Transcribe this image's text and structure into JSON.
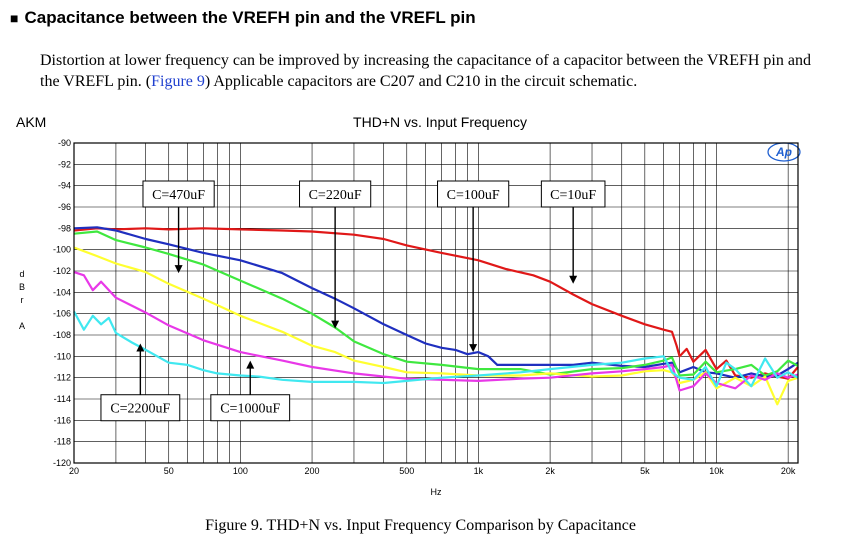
{
  "heading": {
    "bullet": "■",
    "text": "Capacitance between the VREFH pin and the VREFL pin"
  },
  "body": {
    "text_before": "Distortion at lower frequency can be improved by increasing the capacitance of a capacitor between the VREFH pin and the VREFL pin. (",
    "link": "Figure 9",
    "text_after": ")  Applicable capacitors are C207 and C210 in the circuit schematic."
  },
  "caption": "Figure 9. THD+N vs. Input Frequency Comparison by Capacitance",
  "chart_data": {
    "type": "line",
    "title": "THD+N vs. Input Frequency",
    "brand": "AKM",
    "logo_text": "Ap",
    "xlabel": "Hz",
    "ylabel": [
      "d",
      "B",
      "r",
      "",
      "A"
    ],
    "x_scale": "log",
    "xlim": [
      20,
      22000
    ],
    "ylim": [
      -120,
      -90
    ],
    "grid": true,
    "x_ticks": [
      {
        "v": 20,
        "label": "20"
      },
      {
        "v": 50,
        "label": "50"
      },
      {
        "v": 100,
        "label": "100"
      },
      {
        "v": 200,
        "label": "200"
      },
      {
        "v": 500,
        "label": "500"
      },
      {
        "v": 1000,
        "label": "1k"
      },
      {
        "v": 2000,
        "label": "2k"
      },
      {
        "v": 5000,
        "label": "5k"
      },
      {
        "v": 10000,
        "label": "10k"
      },
      {
        "v": 20000,
        "label": "20k"
      }
    ],
    "y_ticks": [
      {
        "v": -90,
        "label": "-90"
      },
      {
        "v": -92,
        "label": "-92"
      },
      {
        "v": -94,
        "label": "-94"
      },
      {
        "v": -96,
        "label": "-96"
      },
      {
        "v": -98,
        "label": "-98"
      },
      {
        "v": -100,
        "label": "-100"
      },
      {
        "v": -102,
        "label": "-102"
      },
      {
        "v": -104,
        "label": "-104"
      },
      {
        "v": -106,
        "label": "-106"
      },
      {
        "v": -108,
        "label": "-108"
      },
      {
        "v": -110,
        "label": "-110"
      },
      {
        "v": -112,
        "label": "-112"
      },
      {
        "v": -114,
        "label": "-114"
      },
      {
        "v": -116,
        "label": "-116"
      },
      {
        "v": -118,
        "label": "-118"
      },
      {
        "v": -120,
        "label": "-120"
      }
    ],
    "series": [
      {
        "name": "C=10uF",
        "color": "#e01818",
        "x": [
          20,
          25,
          30,
          40,
          50,
          70,
          100,
          150,
          200,
          300,
          400,
          500,
          700,
          1000,
          1300,
          1700,
          2000,
          2500,
          3000,
          4000,
          5000,
          6000,
          6500,
          6800,
          7000,
          7500,
          8000,
          9000,
          10000,
          11000,
          12000,
          14000,
          16000,
          18000,
          20000,
          22000
        ],
        "y": [
          -98.2,
          -98.0,
          -98.1,
          -98.0,
          -98.1,
          -98.0,
          -98.1,
          -98.2,
          -98.3,
          -98.6,
          -99.0,
          -99.6,
          -100.3,
          -101.0,
          -101.8,
          -102.4,
          -103.0,
          -104.2,
          -105.1,
          -106.2,
          -107.0,
          -107.5,
          -107.7,
          -109.0,
          -110.0,
          -109.3,
          -110.5,
          -109.4,
          -111.2,
          -110.4,
          -111.8,
          -112.0,
          -111.6,
          -111.9,
          -112.1,
          -111.0
        ]
      },
      {
        "name": "C=100uF",
        "color": "#1f2fbf",
        "x": [
          20,
          25,
          30,
          40,
          50,
          70,
          100,
          150,
          200,
          250,
          300,
          400,
          500,
          600,
          700,
          800,
          900,
          1000,
          1100,
          1200,
          1500,
          2000,
          2500,
          3000,
          4000,
          5000,
          6000,
          6500,
          7000,
          8000,
          9000,
          10000,
          12000,
          14000,
          16000,
          18000,
          20000,
          22000
        ],
        "y": [
          -98.0,
          -97.9,
          -98.2,
          -99.0,
          -99.5,
          -100.3,
          -101.0,
          -102.2,
          -103.6,
          -104.6,
          -105.5,
          -107.0,
          -108.0,
          -108.8,
          -109.2,
          -109.4,
          -109.8,
          -109.6,
          -110.0,
          -110.8,
          -110.8,
          -110.8,
          -110.8,
          -110.6,
          -110.9,
          -111.0,
          -110.7,
          -110.6,
          -111.5,
          -111.0,
          -111.5,
          -111.6,
          -112.0,
          -111.6,
          -111.9,
          -111.8,
          -111.2,
          -110.6
        ]
      },
      {
        "name": "C=220uF",
        "color": "#3fe83f",
        "x": [
          20,
          25,
          30,
          40,
          50,
          70,
          100,
          150,
          200,
          250,
          300,
          400,
          500,
          700,
          1000,
          1500,
          2000,
          3000,
          4000,
          5000,
          6000,
          6500,
          7000,
          8000,
          9000,
          10000,
          12000,
          14000,
          16000,
          18000,
          20000,
          22000
        ],
        "y": [
          -98.5,
          -98.3,
          -99.1,
          -99.8,
          -100.4,
          -101.4,
          -102.9,
          -104.6,
          -106.0,
          -107.3,
          -108.6,
          -109.8,
          -110.5,
          -110.8,
          -111.2,
          -111.2,
          -111.7,
          -111.2,
          -111.1,
          -110.8,
          -110.4,
          -110.1,
          -111.8,
          -111.7,
          -110.5,
          -111.5,
          -111.2,
          -110.8,
          -111.8,
          -111.4,
          -110.4,
          -110.9
        ]
      },
      {
        "name": "C=470uF",
        "color": "#ffff30",
        "x": [
          20,
          25,
          30,
          40,
          50,
          70,
          100,
          150,
          200,
          250,
          300,
          400,
          500,
          700,
          1000,
          1500,
          2000,
          3000,
          4000,
          5000,
          6000,
          6500,
          7000,
          8000,
          9000,
          10000,
          12000,
          14000,
          16000,
          18000,
          20000,
          22000
        ],
        "y": [
          -99.8,
          -100.6,
          -101.3,
          -102.1,
          -103.2,
          -104.6,
          -106.2,
          -107.7,
          -109.0,
          -109.6,
          -110.4,
          -111.0,
          -111.5,
          -111.6,
          -111.8,
          -111.8,
          -111.6,
          -111.9,
          -111.8,
          -111.4,
          -111.3,
          -111.5,
          -112.5,
          -112.2,
          -111.5,
          -113.0,
          -112.0,
          -112.8,
          -111.9,
          -114.5,
          -112.3,
          -112.0
        ]
      },
      {
        "name": "C=1000uF",
        "color": "#e838e8",
        "x": [
          20,
          22,
          24,
          26,
          30,
          40,
          50,
          70,
          100,
          150,
          200,
          300,
          400,
          500,
          700,
          1000,
          1500,
          2000,
          3000,
          4000,
          5000,
          6000,
          6500,
          7000,
          8000,
          9000,
          10000,
          12000,
          14000,
          16000,
          18000,
          20000,
          22000
        ],
        "y": [
          -102.1,
          -102.4,
          -103.8,
          -103.0,
          -104.5,
          -105.9,
          -107.1,
          -108.5,
          -109.6,
          -110.4,
          -111.0,
          -111.6,
          -111.9,
          -112.1,
          -112.2,
          -112.3,
          -112.1,
          -112.0,
          -111.6,
          -111.4,
          -111.2,
          -111.0,
          -110.8,
          -113.2,
          -112.8,
          -111.6,
          -112.5,
          -113.0,
          -111.8,
          -112.2,
          -111.6,
          -112.0,
          -111.7
        ]
      },
      {
        "name": "C=2200uF",
        "color": "#40e8f0",
        "x": [
          20,
          22,
          24,
          26,
          28,
          30,
          35,
          40,
          50,
          60,
          70,
          80,
          100,
          120,
          150,
          200,
          300,
          400,
          500,
          700,
          1000,
          1500,
          2000,
          3000,
          4000,
          5000,
          6000,
          6500,
          7000,
          8000,
          9000,
          10000,
          11000,
          12000,
          14000,
          16000,
          18000,
          20000,
          22000
        ],
        "y": [
          -105.8,
          -107.5,
          -106.2,
          -107.0,
          -106.4,
          -107.8,
          -108.7,
          -109.4,
          -110.6,
          -110.8,
          -111.3,
          -111.6,
          -111.8,
          -111.9,
          -112.2,
          -112.4,
          -112.4,
          -112.5,
          -112.3,
          -112.0,
          -111.8,
          -111.5,
          -111.2,
          -110.8,
          -110.6,
          -110.2,
          -110.0,
          -111.5,
          -112.0,
          -112.2,
          -111.0,
          -112.8,
          -110.6,
          -111.2,
          -112.8,
          -110.2,
          -112.0,
          -111.5,
          -112.0
        ]
      }
    ],
    "annotations": [
      {
        "label": "C=470uF",
        "arrow_to": [
          55,
          -102.2
        ],
        "arrow_from_y": -96.0
      },
      {
        "label": "C=220uF",
        "arrow_to": [
          250,
          -107.4
        ],
        "arrow_from_y": -96.0
      },
      {
        "label": "C=100uF",
        "arrow_to": [
          950,
          -109.6
        ],
        "arrow_from_y": -96.0
      },
      {
        "label": "C=10uF",
        "arrow_to": [
          2500,
          -103.2
        ],
        "arrow_from_y": -96.0
      },
      {
        "label": "C=2200uF",
        "arrow_to": [
          38,
          -108.8
        ],
        "arrow_from_y": -113.6
      },
      {
        "label": "C=1000uF",
        "arrow_to": [
          110,
          -110.4
        ],
        "arrow_from_y": -113.6
      }
    ]
  }
}
